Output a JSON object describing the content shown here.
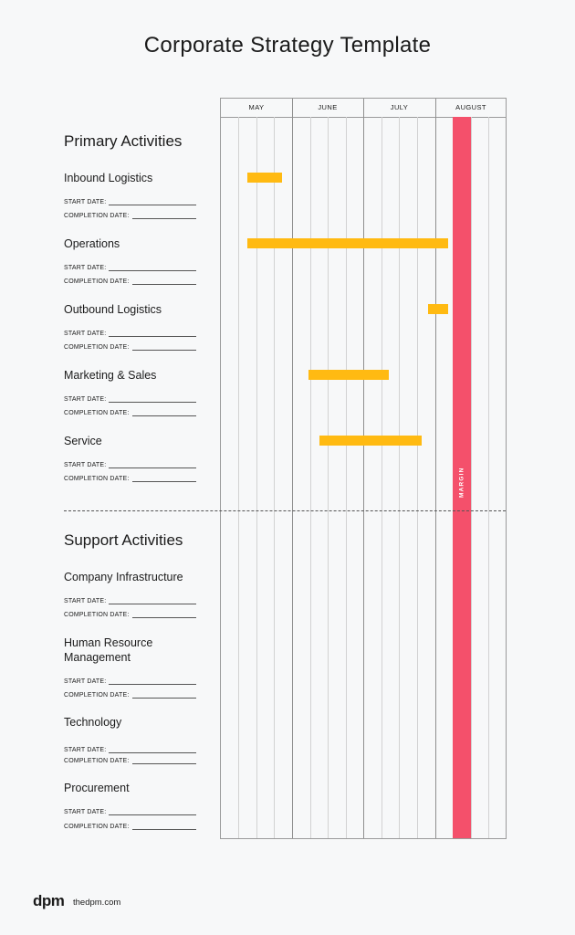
{
  "title": "Corporate Strategy Template",
  "months": [
    "MAY",
    "JUNE",
    "JULY",
    "AUGUST"
  ],
  "margin_label": "MARGIN",
  "field_labels": {
    "start": "START DATE:",
    "completion": "COMPLETION DATE:"
  },
  "primary": {
    "heading": "Primary Activities",
    "items": [
      {
        "name": "Inbound Logistics",
        "bar_weeks": [
          1.5,
          3.4
        ]
      },
      {
        "name": "Operations",
        "bar_weeks": [
          1.5,
          12.7
        ]
      },
      {
        "name": "Outbound Logistics",
        "bar_weeks": [
          11.6,
          12.7
        ]
      },
      {
        "name": "Marketing & Sales",
        "bar_weeks": [
          4.9,
          9.4
        ]
      },
      {
        "name": "Service",
        "bar_weeks": [
          5.5,
          11.2
        ]
      }
    ]
  },
  "support": {
    "heading": "Support Activities",
    "items": [
      {
        "name": "Company Infrastructure"
      },
      {
        "name": "Human Resource Management"
      },
      {
        "name": "Technology"
      },
      {
        "name": "Procurement"
      }
    ]
  },
  "colors": {
    "bar": "#ffba12",
    "margin": "#f4506b",
    "background": "#f7f8f9"
  },
  "footer": {
    "logo": "dpm",
    "site": "thedpm.com"
  }
}
